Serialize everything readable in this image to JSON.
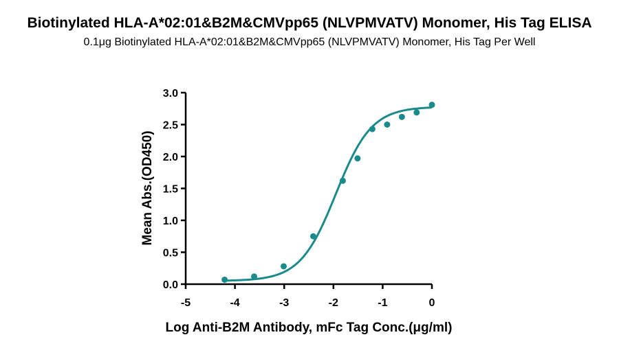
{
  "title": "Biotinylated HLA-A*02:01&B2M&CMVpp65 (NLVPMVATV) Monomer, His Tag ELISA",
  "subtitle": "0.1μg Biotinylated HLA-A*02:01&B2M&CMVpp65 (NLVPMVATV) Monomer, His Tag Per Well",
  "chart_data": {
    "type": "scatter",
    "xlabel": "Log  Anti-B2M Antibody, mFc Tag Conc.(μg/ml)",
    "ylabel": "Mean Abs.(OD450)",
    "xlim": [
      -5,
      0
    ],
    "ylim": [
      0,
      3.0
    ],
    "x_ticks": [
      -5,
      -4,
      -3,
      -2,
      -1,
      0
    ],
    "y_ticks": [
      "0.0",
      "0.5",
      "1.0",
      "1.5",
      "2.0",
      "2.5",
      "3.0"
    ],
    "color": "#1a8a8a",
    "points": [
      {
        "x": -4.21,
        "y": 0.07
      },
      {
        "x": -3.61,
        "y": 0.12
      },
      {
        "x": -3.01,
        "y": 0.28
      },
      {
        "x": -2.41,
        "y": 0.75
      },
      {
        "x": -1.81,
        "y": 1.62
      },
      {
        "x": -1.51,
        "y": 1.97
      },
      {
        "x": -1.21,
        "y": 2.43
      },
      {
        "x": -0.91,
        "y": 2.5
      },
      {
        "x": -0.61,
        "y": 2.62
      },
      {
        "x": -0.31,
        "y": 2.69
      },
      {
        "x": 0.0,
        "y": 2.81
      }
    ],
    "fit": {
      "model": "4PL",
      "bottom": 0.05,
      "top": 2.78,
      "log_ec50": -1.95,
      "hill_slope": 1.2
    }
  }
}
